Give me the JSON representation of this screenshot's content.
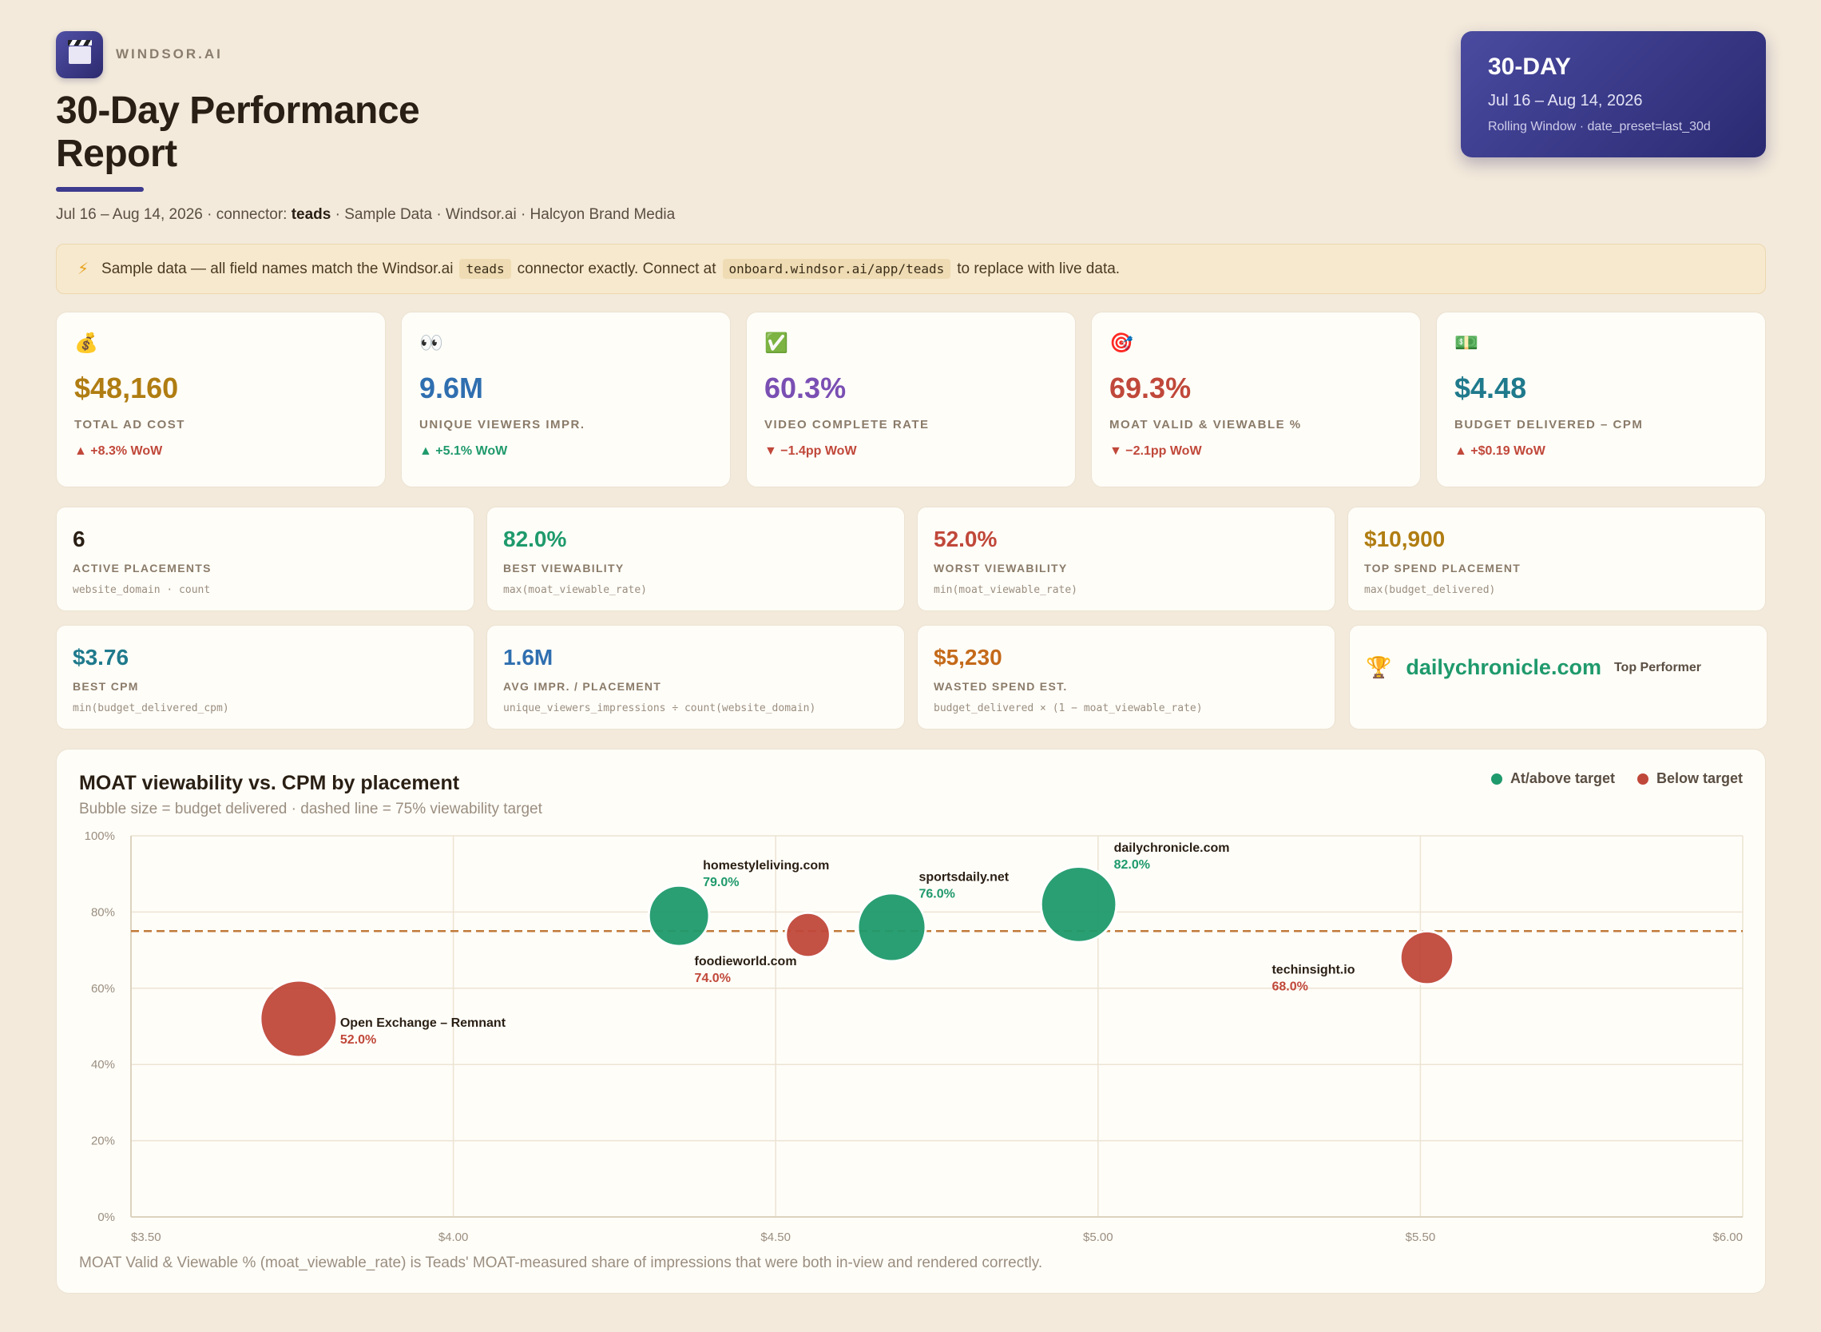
{
  "header": {
    "brand": "WINDSOR.AI",
    "title": "30-Day Performance Report",
    "subtitle_prefix": "Jul 16 – Aug 14, 2026 · connector: ",
    "subtitle_connector": "teads",
    "subtitle_suffix": " · Sample Data · Windsor.ai · Halcyon Brand Media"
  },
  "period": {
    "title": "30-DAY",
    "range": "Jul 16 – Aug 14, 2026",
    "note": "Rolling Window · date_preset=last_30d"
  },
  "notice": {
    "icon": "lightning-icon",
    "text1": "Sample data — all field names match the Windsor.ai",
    "code1": "teads",
    "text2": "connector exactly. Connect at",
    "code2": "onboard.windsor.ai/app/teads",
    "text3": "to replace with live data."
  },
  "kpis": [
    {
      "icon": "money-bag-icon",
      "value": "$48,160",
      "label": "TOTAL AD COST",
      "delta": "▲ +8.3% WoW",
      "color": "#b07d12",
      "delta_color": "#c0483a"
    },
    {
      "icon": "eyes-icon",
      "value": "9.6M",
      "label": "UNIQUE VIEWERS IMPR.",
      "delta": "▲ +5.1% WoW",
      "color": "#2f6fb0",
      "delta_color": "#1f9a6c"
    },
    {
      "icon": "check-icon",
      "value": "60.3%",
      "label": "VIDEO COMPLETE RATE",
      "delta": "▼ −1.4pp WoW",
      "color": "#7a4fb3",
      "delta_color": "#c0483a"
    },
    {
      "icon": "target-icon",
      "value": "69.3%",
      "label": "MOAT VALID & VIEWABLE %",
      "delta": "▼ −2.1pp WoW",
      "color": "#c0483a",
      "delta_color": "#c0483a"
    },
    {
      "icon": "dollar-bill-icon",
      "value": "$4.48",
      "label": "BUDGET DELIVERED – CPM",
      "delta": "▲ +$0.19 WoW",
      "color": "#1f7a8c",
      "delta_color": "#c0483a"
    }
  ],
  "metrics": [
    {
      "value": "6",
      "label": "ACTIVE PLACEMENTS",
      "formula": "website_domain · count",
      "color": "#2a1f14"
    },
    {
      "value": "82.0%",
      "label": "BEST VIEWABILITY",
      "formula": "max(moat_viewable_rate)",
      "color": "#1f9a6c"
    },
    {
      "value": "52.0%",
      "label": "WORST VIEWABILITY",
      "formula": "min(moat_viewable_rate)",
      "color": "#c0483a"
    },
    {
      "value": "$10,900",
      "label": "TOP SPEND PLACEMENT",
      "formula": "max(budget_delivered)",
      "color": "#b07d12"
    },
    {
      "value": "$3.76",
      "label": "BEST CPM",
      "formula": "min(budget_delivered_cpm)",
      "color": "#1f7a8c"
    },
    {
      "value": "1.6M",
      "label": "AVG IMPR. / PLACEMENT",
      "formula": "unique_viewers_impressions ÷ count(website_domain)",
      "color": "#2f6fb0"
    },
    {
      "value": "$5,230",
      "label": "WASTED SPEND EST.",
      "formula": "budget_delivered × (1 − moat_viewable_rate)",
      "color": "#c46a1a"
    }
  ],
  "top_performer": {
    "icon": "trophy-icon",
    "domain": "dailychronicle.com",
    "tag": "Top Performer"
  },
  "chart": {
    "title": "MOAT viewability vs. CPM by placement",
    "subtitle": "Bubble size = budget delivered · dashed line = 75% viewability target",
    "legend": [
      {
        "label": "At/above target",
        "color": "#1f9a6c"
      },
      {
        "label": "Below target",
        "color": "#c0483a"
      }
    ],
    "footnote": "MOAT Valid & Viewable % (moat_viewable_rate) is Teads' MOAT-measured share of impressions that were both in-view and rendered correctly."
  },
  "chart_data": {
    "type": "scatter",
    "title": "MOAT viewability vs. CPM by placement",
    "xlim": [
      3.5,
      6.0
    ],
    "ylim": [
      0,
      100
    ],
    "x_ticks": [
      "$3.50",
      "$4.00",
      "$4.50",
      "$5.00",
      "$5.50",
      "$6.00"
    ],
    "y_ticks": [
      "0%",
      "20%",
      "40%",
      "60%",
      "80%",
      "100%"
    ],
    "target": 75,
    "grid": true,
    "legend_position": "top-right",
    "points": [
      {
        "name": "Open Exchange – Remnant",
        "label": "52.0%",
        "x": 3.76,
        "y": 52,
        "size": 10900,
        "status": "below"
      },
      {
        "name": "homestyleliving.com",
        "label": "79.0%",
        "x": 4.35,
        "y": 79,
        "size": 5400,
        "status": "above"
      },
      {
        "name": "foodieworld.com",
        "label": "74.0%",
        "x": 4.55,
        "y": 74,
        "size": 1800,
        "status": "below"
      },
      {
        "name": "sportsdaily.net",
        "label": "76.0%",
        "x": 4.68,
        "y": 76,
        "size": 7700,
        "status": "above"
      },
      {
        "name": "dailychronicle.com",
        "label": "82.0%",
        "x": 4.97,
        "y": 82,
        "size": 10500,
        "status": "above"
      },
      {
        "name": "techinsight.io",
        "label": "68.0%",
        "x": 5.51,
        "y": 68,
        "size": 3500,
        "status": "below"
      }
    ]
  }
}
